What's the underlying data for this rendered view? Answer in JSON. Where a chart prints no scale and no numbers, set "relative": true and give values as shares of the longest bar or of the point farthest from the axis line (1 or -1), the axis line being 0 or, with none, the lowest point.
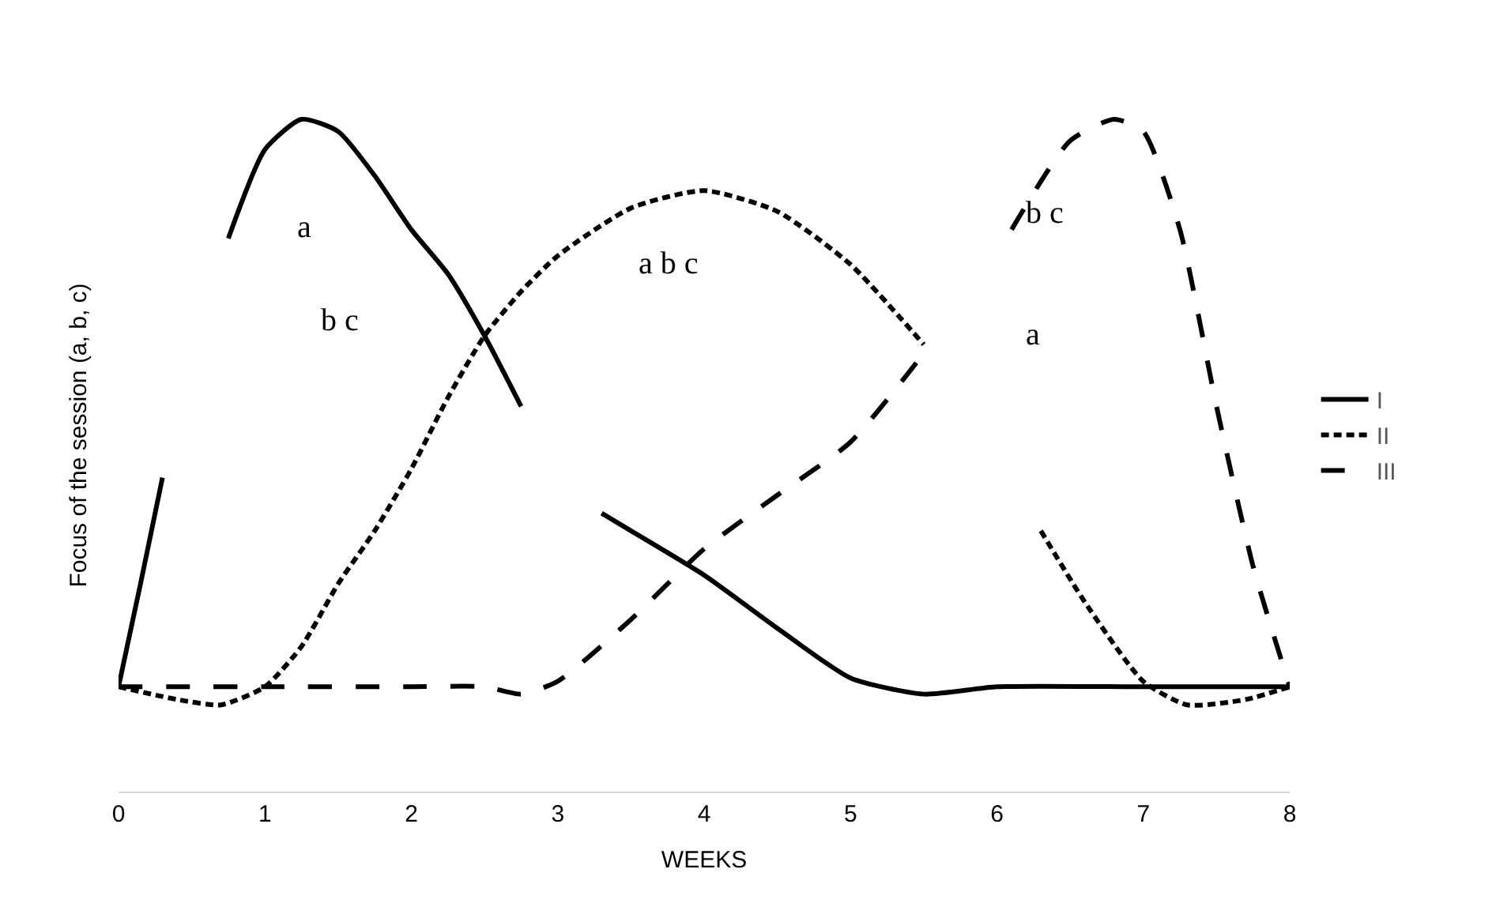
{
  "chart_data": {
    "type": "line",
    "relative": true,
    "xlabel": "WEEKS",
    "ylabel": "Focus of the session (a, b, c)",
    "xlim": [
      0,
      8
    ],
    "xticks": [
      0,
      1,
      2,
      3,
      4,
      5,
      6,
      7,
      8
    ],
    "legend": "right",
    "marker": "none",
    "series": [
      {
        "name": "I",
        "color": "#000000",
        "line_style": "solid",
        "x": [
          0,
          0.15,
          0.3,
          0.5,
          0.75,
          1.0,
          1.25,
          1.5,
          1.75,
          2.0,
          2.25,
          2.5,
          2.75,
          3.0,
          3.3,
          3.5,
          4.0,
          4.5,
          5.0,
          5.5,
          6.0,
          7.0,
          8.0
        ],
        "values": [
          0.156,
          0.309,
          0.467,
          null,
          0.823,
          0.955,
          1.0,
          0.982,
          0.916,
          0.836,
          0.77,
          0.678,
          0.573,
          null,
          0.414,
          0.388,
          0.322,
          0.243,
          0.169,
          0.145,
          0.156,
          0.156,
          0.156
        ]
      },
      {
        "name": "II",
        "color": "#000000",
        "line_style": "dotted",
        "x": [
          0,
          0.4,
          0.7,
          1.0,
          1.25,
          1.5,
          1.75,
          2.0,
          2.25,
          2.5,
          2.75,
          3.0,
          3.5,
          4.0,
          4.5,
          5.0,
          5.5,
          5.9,
          6.3,
          6.6,
          7.0,
          7.3,
          7.7,
          8.0
        ],
        "values": [
          0.156,
          0.137,
          0.129,
          0.156,
          0.216,
          0.309,
          0.388,
          0.48,
          0.586,
          0.678,
          0.744,
          0.797,
          0.868,
          0.894,
          0.863,
          0.784,
          0.665,
          null,
          0.388,
          0.282,
          0.164,
          0.129,
          0.137,
          0.156
        ]
      },
      {
        "name": "III",
        "color": "#000000",
        "line_style": "dashed",
        "x": [
          0,
          1,
          2,
          2.5,
          2.75,
          3.0,
          3.5,
          4.0,
          4.5,
          5.0,
          5.5,
          5.8,
          6.1,
          6.5,
          6.8,
          7.0,
          7.25,
          7.5,
          7.75,
          8.0
        ],
        "values": [
          0.156,
          0.156,
          0.156,
          0.156,
          0.145,
          0.164,
          0.256,
          0.361,
          0.441,
          0.52,
          0.652,
          null,
          0.836,
          0.968,
          1.0,
          0.982,
          0.836,
          0.573,
          0.335,
          0.156
        ]
      }
    ],
    "annotations": [
      "a",
      "b c",
      "a b c",
      "b c",
      "a"
    ]
  }
}
